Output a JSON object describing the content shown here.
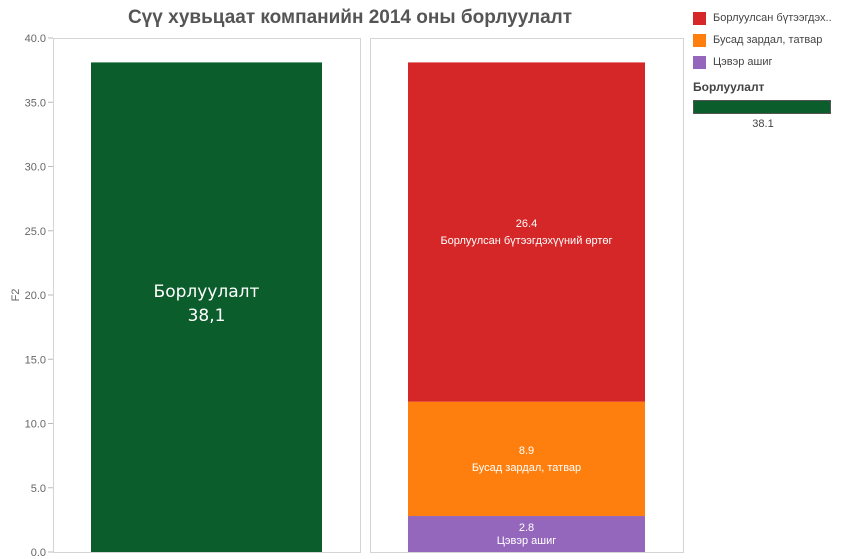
{
  "chart_data": {
    "type": "bar",
    "title": "Сүү хувьцаат компанийн 2014 оны борлуулалт",
    "ylabel": "F2",
    "ylim": [
      0,
      40
    ],
    "yticks": [
      "0.0",
      "5.0",
      "10.0",
      "15.0",
      "20.0",
      "25.0",
      "30.0",
      "35.0",
      "40.0"
    ],
    "left_bar": {
      "name": "Борлуулалт",
      "value": 38.1,
      "label_name": "Борлуулалт",
      "label_value": "38,1",
      "color": "#0b5e2c"
    },
    "stack": [
      {
        "name": "Цэвэр ашиг",
        "value": 2.8,
        "value_label": "2.8",
        "color": "#9467bd"
      },
      {
        "name": "Бусад зардал, татвар",
        "value": 8.9,
        "value_label": "8.9",
        "color": "#ff7f0e"
      },
      {
        "name": "Борлуулсан бүтээгдэхүүний өртөг",
        "value": 26.4,
        "value_label": "26.4",
        "color": "#d62728"
      }
    ]
  },
  "legend": {
    "items": [
      {
        "label": "Борлуулсан бүтээгдэх..",
        "color": "#d62728"
      },
      {
        "label": "Бусад зардал, татвар",
        "color": "#ff7f0e"
      },
      {
        "label": "Цэвэр ашиг",
        "color": "#9467bd"
      }
    ],
    "size_title": "Борлуулалт",
    "size_value": "38.1",
    "size_color": "#0b5e2c"
  }
}
